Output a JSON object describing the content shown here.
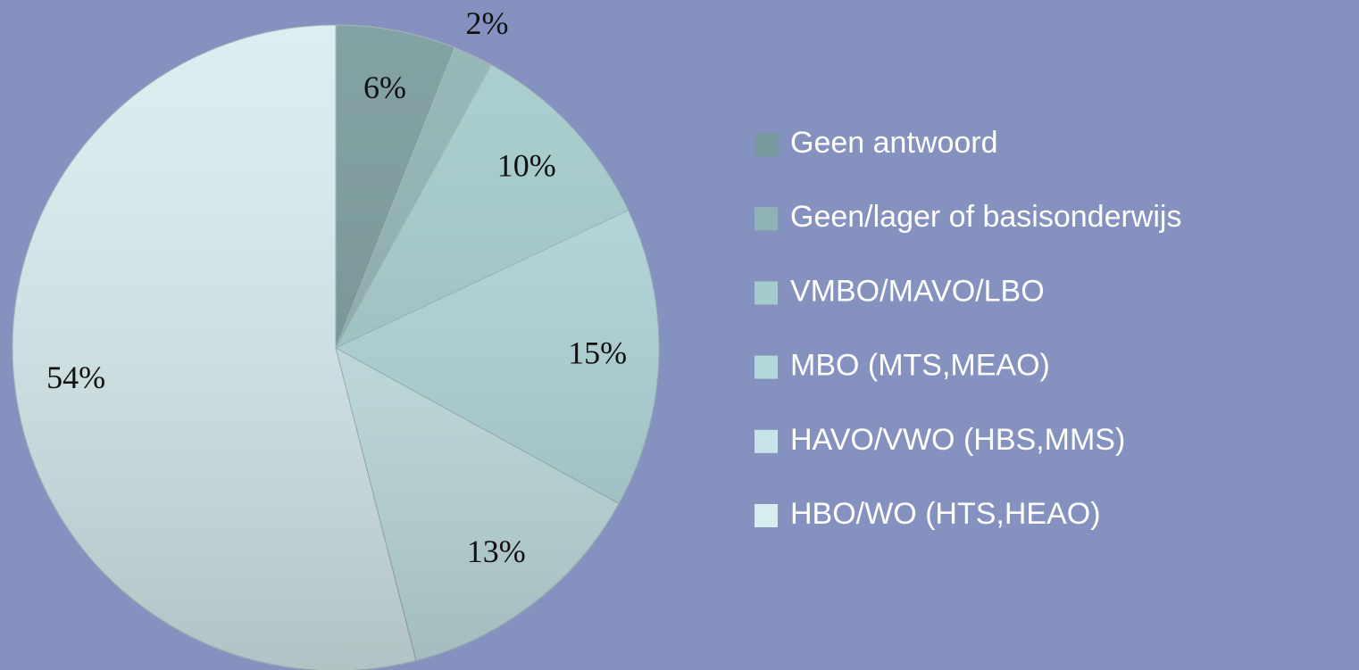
{
  "chart_data": {
    "type": "pie",
    "categories": [
      "Geen antwoord",
      "Geen/lager of basisonderwijs",
      "VMBO/MAVO/LBO",
      "MBO (MTS,MEAO)",
      "HAVO/VWO (HBS,MMS)",
      "HBO/WO (HTS,HEAO)"
    ],
    "values": [
      6,
      2,
      10,
      15,
      13,
      54
    ],
    "value_labels": [
      "6%",
      "2%",
      "10%",
      "15%",
      "13%",
      "54%"
    ],
    "colors": [
      "#789a9b",
      "#8fb2b3",
      "#a4cbcc",
      "#b2d8dc",
      "#c6e4e7",
      "#d8edef"
    ],
    "legend": "right"
  }
}
